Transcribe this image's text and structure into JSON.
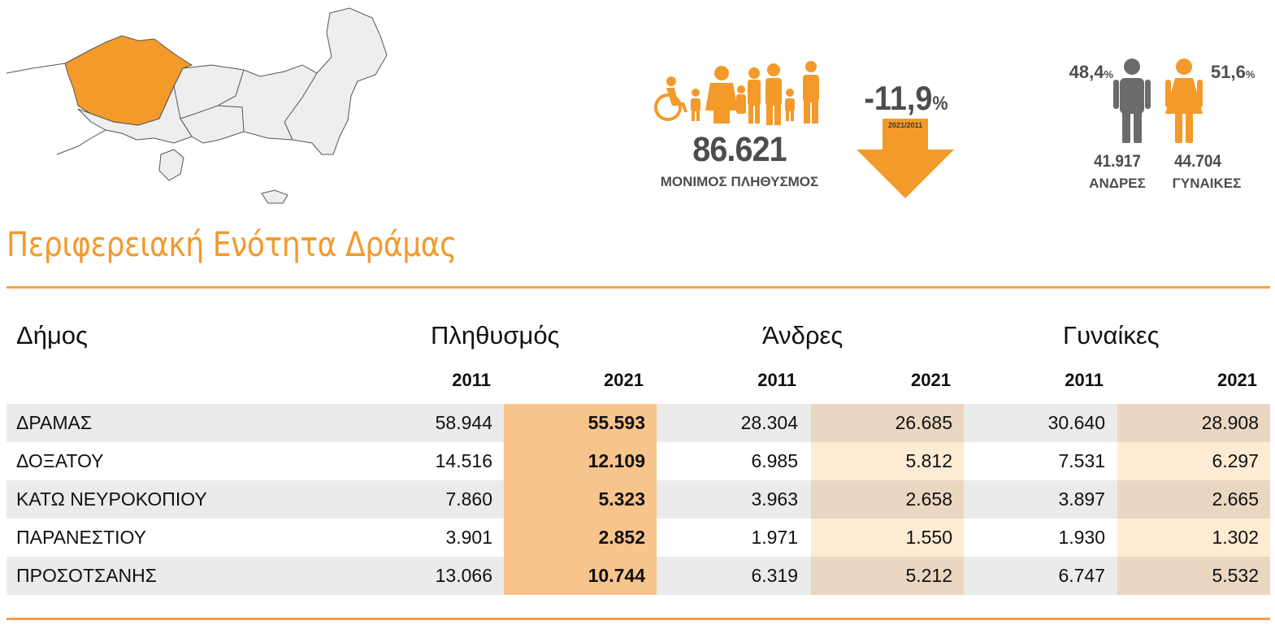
{
  "infographic": {
    "population_value": "86.621",
    "population_caption": "ΜΟΝΙΜΟΣ ΠΛΗΘΥΣΜΟΣ",
    "change_value": "-11,9",
    "change_unit": "%",
    "change_period": "2021/2011",
    "male_pct": "48,4",
    "female_pct": "51,6",
    "pct_sign": "%",
    "male_count": "41.917",
    "female_count": "44.704",
    "male_label": "ΑΝΔΡΕΣ",
    "female_label": "ΓΥΝΑΙΚΕΣ",
    "accent_color": "#f39a2a",
    "male_color": "#6b6b6b"
  },
  "title": "Περιφερειακή Ενότητα Δράμας",
  "table": {
    "headers": {
      "municipality": "Δήμος",
      "population": "Πληθυσμός",
      "men": "Άνδρες",
      "women": "Γυναίκες"
    },
    "years": [
      "2011",
      "2021",
      "2011",
      "2021",
      "2011",
      "2021"
    ],
    "rows": [
      {
        "name": "ΔΡΑΜΑΣ",
        "pop2011": "58.944",
        "pop2021": "55.593",
        "men2011": "28.304",
        "men2021": "26.685",
        "women2011": "30.640",
        "women2021": "28.908"
      },
      {
        "name": "ΔΟΞΑΤΟΥ",
        "pop2011": "14.516",
        "pop2021": "12.109",
        "men2011": "6.985",
        "men2021": "5.812",
        "women2011": "7.531",
        "women2021": "6.297"
      },
      {
        "name": "ΚΑΤΩ ΝΕΥΡΟΚΟΠΙΟΥ",
        "pop2011": "7.860",
        "pop2021": "5.323",
        "men2011": "3.963",
        "men2021": "2.658",
        "women2011": "3.897",
        "women2021": "2.665"
      },
      {
        "name": "ΠΑΡΑΝΕΣΤΙΟΥ",
        "pop2011": "3.901",
        "pop2021": "2.852",
        "men2011": "1.971",
        "men2021": "1.550",
        "women2011": "1.930",
        "women2021": "1.302"
      },
      {
        "name": "ΠΡΟΣΟΤΣΑΝΗΣ",
        "pop2011": "13.066",
        "pop2021": "10.744",
        "men2011": "6.319",
        "men2021": "5.212",
        "women2011": "6.747",
        "women2021": "5.532"
      }
    ]
  }
}
